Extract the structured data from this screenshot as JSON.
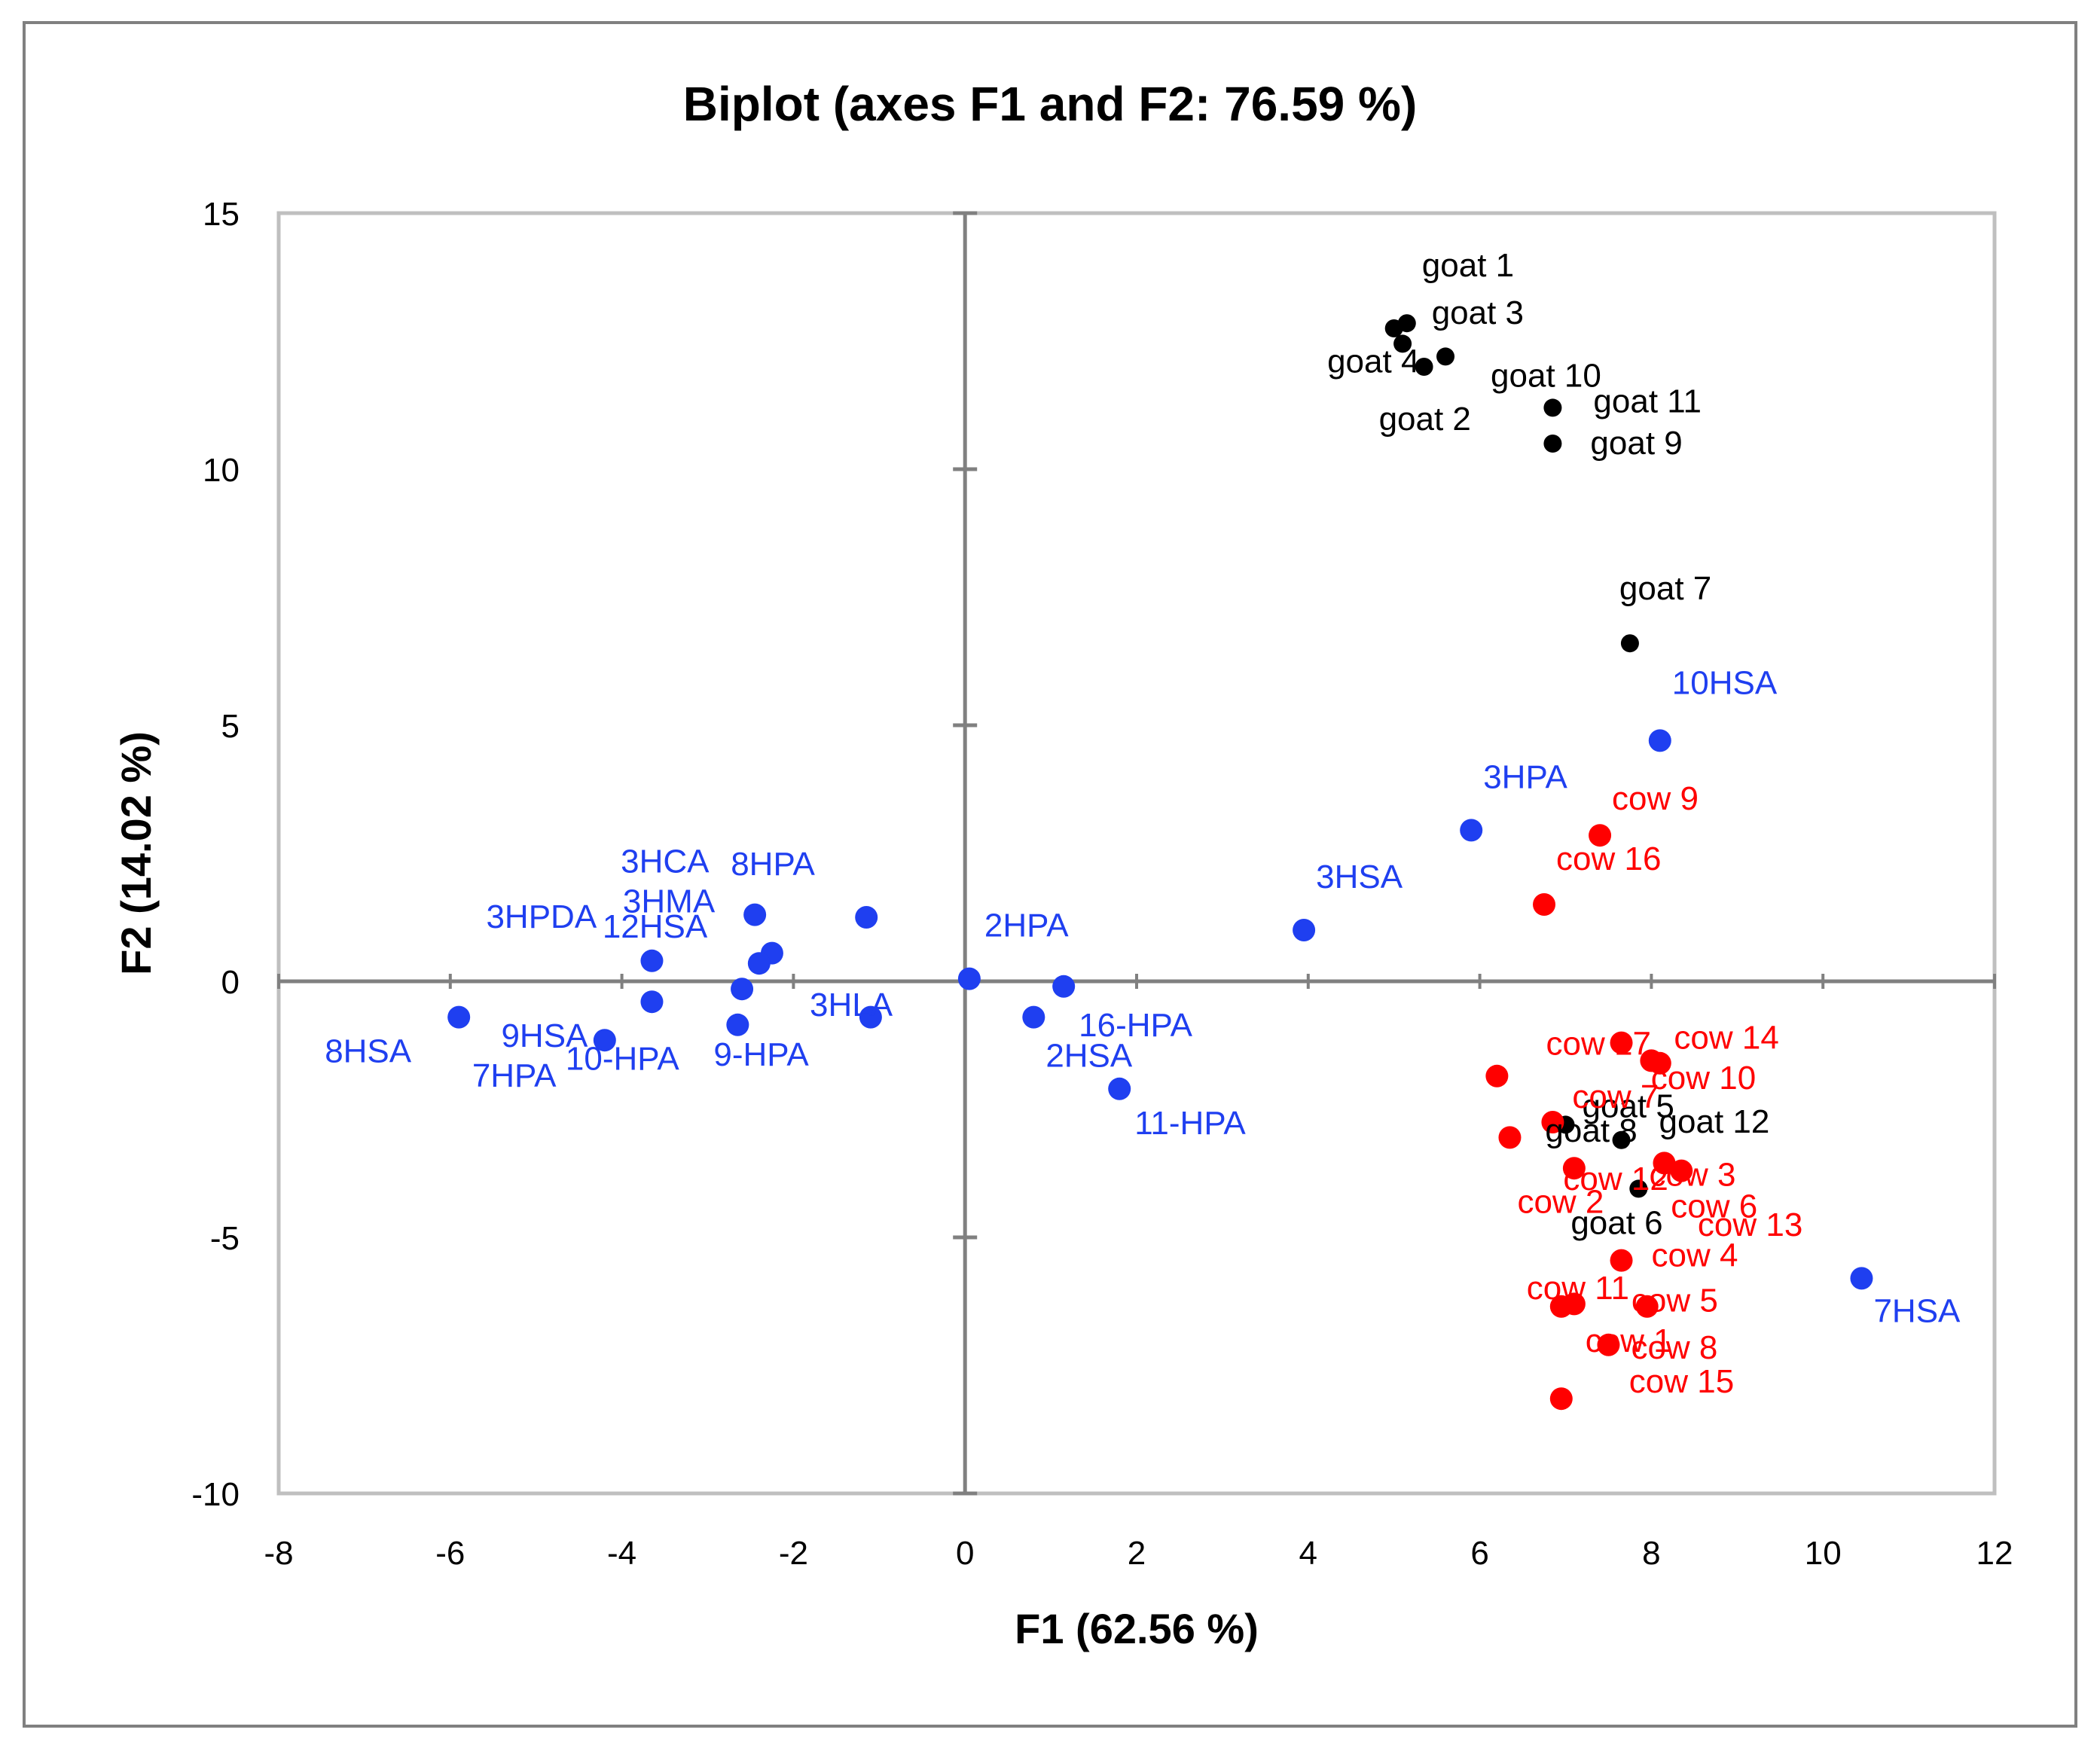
{
  "chart_data": {
    "type": "scatter",
    "title": "Biplot (axes F1 and F2: 76.59 %)",
    "xlabel": "F1 (62.56 %)",
    "ylabel": "F2 (14.02 %)",
    "xlim": [
      -8,
      12
    ],
    "ylim": [
      -10,
      15
    ],
    "x_ticks": [
      -8,
      -6,
      -4,
      -2,
      0,
      2,
      4,
      6,
      8,
      10,
      12
    ],
    "y_ticks": [
      -10,
      -5,
      0,
      5,
      10,
      15
    ],
    "grid": false,
    "legend": "none",
    "colors": {
      "blue": "#1f3ff0",
      "red": "#ff0000",
      "black": "#000000",
      "axis": "#808080",
      "frame": "#bfbfbf",
      "outer": "#808080"
    },
    "points": [
      {
        "label": "goat 1",
        "x": 5.15,
        "y": 12.85,
        "color": "black",
        "small": true
      },
      {
        "label": "goat 3",
        "x": 5.0,
        "y": 12.75,
        "color": "black",
        "small": true
      },
      {
        "label": "goat 10",
        "x": 5.6,
        "y": 12.2,
        "color": "black",
        "small": true
      },
      {
        "label": "goat 4",
        "x": 5.1,
        "y": 12.45,
        "color": "black",
        "small": true
      },
      {
        "label": "goat 2",
        "x": 5.35,
        "y": 12.0,
        "color": "black",
        "small": true
      },
      {
        "label": "goat 11",
        "x": 6.85,
        "y": 11.2,
        "color": "black",
        "small": true
      },
      {
        "label": "goat 9",
        "x": 6.85,
        "y": 10.5,
        "color": "black",
        "small": true
      },
      {
        "label": "goat 7",
        "x": 7.75,
        "y": 6.6,
        "color": "black",
        "small": true
      },
      {
        "label": "goat 5",
        "x": 7.0,
        "y": -2.8,
        "color": "black",
        "small": true
      },
      {
        "label": "goat 12",
        "x": 7.65,
        "y": -3.1,
        "color": "black",
        "small": true
      },
      {
        "label": "goat 8",
        "x": 6.85,
        "y": -2.75,
        "color": "black",
        "small": true
      },
      {
        "label": "goat 6",
        "x": 7.85,
        "y": -4.05,
        "color": "black",
        "small": true
      },
      {
        "label": "10HSA",
        "x": 8.1,
        "y": 4.7,
        "color": "blue"
      },
      {
        "label": "3HPA",
        "x": 5.9,
        "y": 2.95,
        "color": "blue"
      },
      {
        "label": "3HSA",
        "x": 3.95,
        "y": 1.0,
        "color": "blue"
      },
      {
        "label": "2HPA",
        "x": 0.05,
        "y": 0.05,
        "color": "blue"
      },
      {
        "label": "16-HPA",
        "x": 1.15,
        "y": -0.1,
        "color": "blue"
      },
      {
        "label": "2HSA",
        "x": 0.8,
        "y": -0.7,
        "color": "blue"
      },
      {
        "label": "11-HPA",
        "x": 1.8,
        "y": -2.1,
        "color": "blue"
      },
      {
        "label": "7HSA",
        "x": 10.45,
        "y": -5.8,
        "color": "blue"
      },
      {
        "label": "8HPA",
        "x": -1.15,
        "y": 1.25,
        "color": "blue"
      },
      {
        "label": "3HCA",
        "x": -2.45,
        "y": 1.3,
        "color": "blue"
      },
      {
        "label": "3HMA",
        "x": -2.25,
        "y": 0.55,
        "color": "blue"
      },
      {
        "label": "12HSA",
        "x": -2.4,
        "y": 0.35,
        "color": "blue"
      },
      {
        "label": "3HPDA",
        "x": -3.65,
        "y": 0.4,
        "color": "blue"
      },
      {
        "label": "3HLA",
        "x": -2.6,
        "y": -0.15,
        "color": "blue"
      },
      {
        "label": "9HSA",
        "x": -3.65,
        "y": -0.4,
        "color": "blue"
      },
      {
        "label": "9-HPA",
        "x": -2.65,
        "y": -0.85,
        "color": "blue"
      },
      {
        "label": "8HSA",
        "x": -5.9,
        "y": -0.7,
        "color": "blue"
      },
      {
        "label": "10-HPA",
        "x": -1.1,
        "y": -0.7,
        "color": "blue"
      },
      {
        "label": "7HPA",
        "x": -4.2,
        "y": -1.15,
        "color": "blue"
      },
      {
        "label": "cow 9",
        "x": 7.4,
        "y": 2.85,
        "color": "red"
      },
      {
        "label": "cow 16",
        "x": 6.75,
        "y": 1.5,
        "color": "red"
      },
      {
        "label": "cow 17",
        "x": 7.65,
        "y": -1.2,
        "color": "red"
      },
      {
        "label": "cow 14",
        "x": 8.0,
        "y": -1.55,
        "color": "red"
      },
      {
        "label": "cow 10",
        "x": 8.1,
        "y": -1.6,
        "color": "red"
      },
      {
        "label": "cow 7",
        "x": 6.2,
        "y": -1.85,
        "color": "red"
      },
      {
        "label": "cow 2",
        "x": 6.35,
        "y": -3.05,
        "color": "red"
      },
      {
        "label": "cow 3",
        "x": 8.15,
        "y": -3.55,
        "color": "red"
      },
      {
        "label": "cow 6",
        "x": 8.35,
        "y": -3.7,
        "color": "red"
      },
      {
        "label": "cow 13",
        "x": 7.1,
        "y": -3.65,
        "color": "red"
      },
      {
        "label": "cow 4",
        "x": 7.65,
        "y": -5.45,
        "color": "red"
      },
      {
        "label": "cow 11",
        "x": 6.95,
        "y": -6.35,
        "color": "red"
      },
      {
        "label": "cow 5",
        "x": 7.1,
        "y": -6.3,
        "color": "red"
      },
      {
        "label": "cow 1",
        "x": 7.95,
        "y": -6.35,
        "color": "red"
      },
      {
        "label": "cow 8",
        "x": 7.5,
        "y": -7.1,
        "color": "red"
      },
      {
        "label": "cow 15",
        "x": 6.95,
        "y": -8.15,
        "color": "red"
      },
      {
        "label": "cow 12",
        "x": 6.85,
        "y": -2.75,
        "color": "red"
      }
    ]
  }
}
